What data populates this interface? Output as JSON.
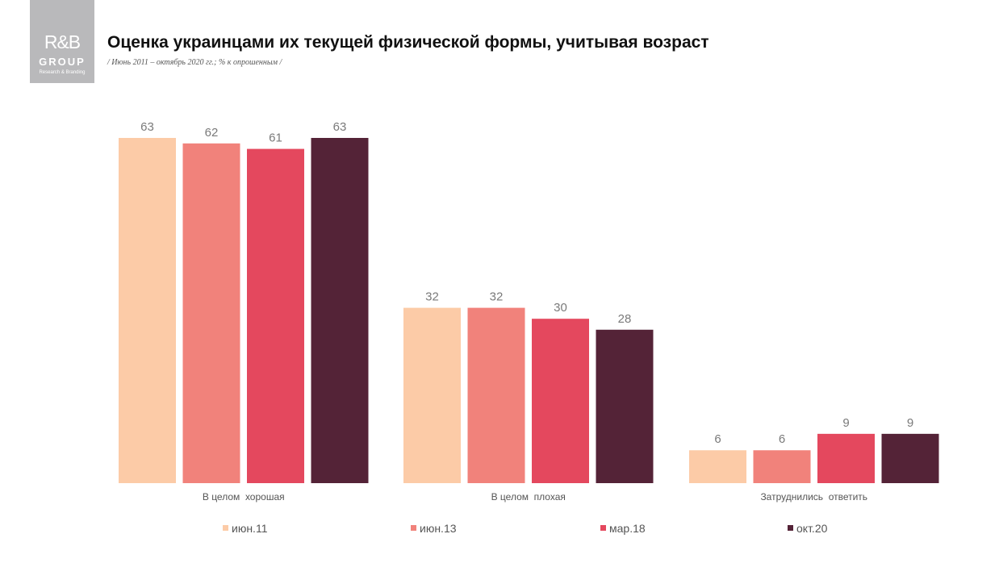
{
  "logo": {
    "line1": "R&B",
    "line2": "GROUP",
    "line3": "Research & Branding"
  },
  "header": {
    "title": "Оценка украинцами их текущей физической формы, учитывая возраст",
    "subtitle": "/ Июнь 2011 – октябрь 2020 гг.; % к опрошенным /"
  },
  "colors": {
    "jun11": "#fccba7",
    "jun13": "#f1827b",
    "mar18": "#e4485e",
    "oct20": "#542337"
  },
  "chart_data": {
    "type": "bar",
    "title": "Оценка украинцами их текущей физической формы, учитывая возраст",
    "xlabel": "",
    "ylabel": "",
    "categories": [
      "В целом  хорошая",
      "В целом  плохая",
      "Затруднились  ответить"
    ],
    "series": [
      {
        "name": "июн.11",
        "color": "#fccba7",
        "values": [
          63,
          32,
          6
        ]
      },
      {
        "name": "июн.13",
        "color": "#f1827b",
        "values": [
          62,
          32,
          6
        ]
      },
      {
        "name": "мар.18",
        "color": "#e4485e",
        "values": [
          61,
          30,
          9
        ]
      },
      {
        "name": "окт.20",
        "color": "#542337",
        "values": [
          63,
          28,
          9
        ]
      }
    ],
    "ylim": [
      0,
      63
    ],
    "grid": false,
    "legend": "bottom"
  }
}
